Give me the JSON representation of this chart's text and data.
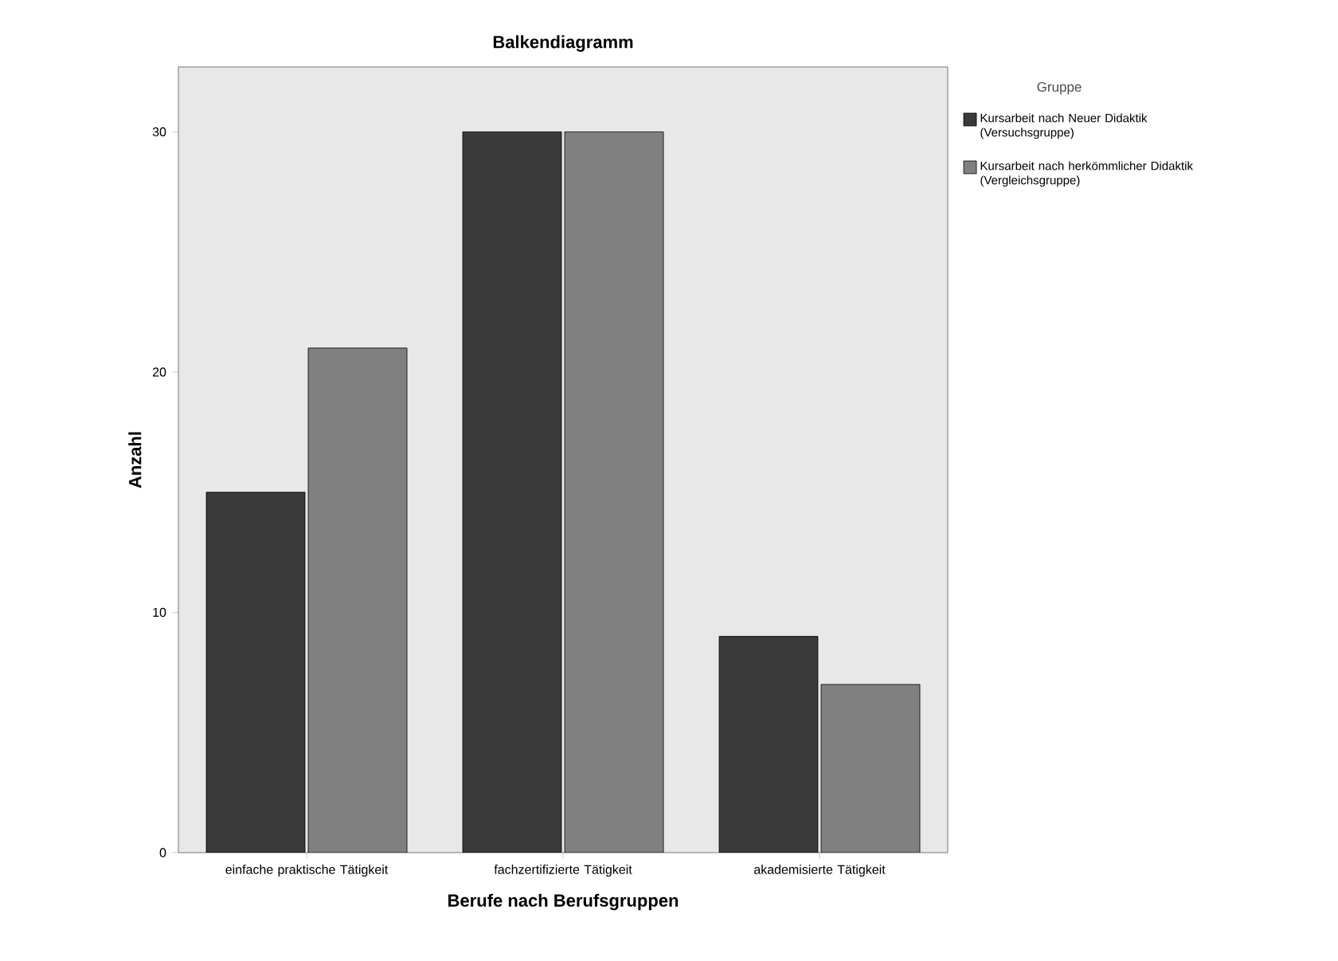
{
  "chart_data": {
    "type": "bar",
    "title": "Balkendiagramm",
    "xlabel": "Berufe nach Berufsgruppen",
    "ylabel": "Anzahl",
    "legend_title": "Gruppe",
    "categories": [
      "einfache praktische Tätigkeit",
      "fachzertifizierte Tätigkeit",
      "akademisierte Tätigkeit"
    ],
    "series": [
      {
        "name": "Kursarbeit nach Neuer Didaktik (Versuchsgruppe)",
        "color": "#3a3a3a",
        "values": [
          15,
          30,
          9
        ]
      },
      {
        "name": "Kursarbeit nach herkömmlicher Didaktik (Vergleichsgruppe)",
        "color": "#808080",
        "values": [
          21,
          30,
          7
        ]
      }
    ],
    "ylim": [
      0,
      32.7
    ],
    "yticks": [
      0,
      10,
      20,
      30
    ],
    "grid": false,
    "legend": "top right"
  }
}
